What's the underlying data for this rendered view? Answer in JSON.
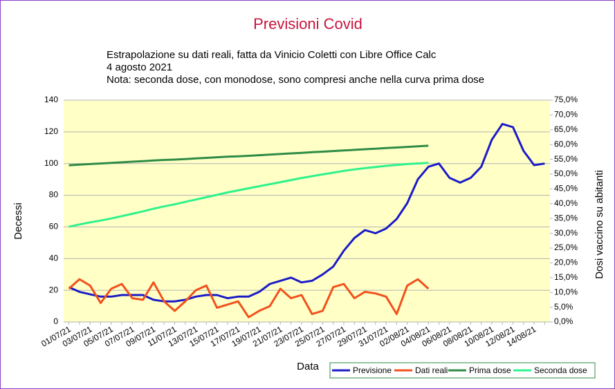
{
  "chart_data": {
    "type": "line",
    "title": "Previsioni Covid",
    "subtitle": [
      "Estrapolazione su dati reali, fatta da Vinicio Coletti con Libre Office Calc",
      "4 agosto 2021",
      "Nota: seconda dose, con monodose, sono compresi anche nella curva prima dose"
    ],
    "xlabel": "Data",
    "ylabel": "Decessi",
    "y2label": "Dosi vaccino su abitanti",
    "categories": [
      "01/07/21",
      null,
      "03/07/21",
      null,
      "05/07/21",
      null,
      "07/07/21",
      null,
      "09/07/21",
      null,
      "11/07/21",
      null,
      "13/07/21",
      null,
      "15/07/21",
      null,
      "17/07/21",
      null,
      "19/07/21",
      null,
      "21/07/21",
      null,
      "23/07/21",
      null,
      "25/07/21",
      null,
      "27/07/21",
      null,
      "29/07/21",
      null,
      "31/07/21",
      null,
      "02/08/21",
      null,
      "04/08/21",
      null,
      "06/08/21",
      null,
      "08/08/21",
      null,
      "10/08/21",
      null,
      "12/08/21",
      null,
      "14/08/21",
      null
    ],
    "series": [
      {
        "name": "Previsione",
        "color": "#1a1ac8",
        "values": [
          22,
          19,
          17.5,
          16,
          16,
          17,
          17,
          17,
          14,
          13,
          13,
          14,
          16,
          17,
          17,
          15,
          16,
          16,
          19,
          24,
          26,
          28,
          25,
          26,
          30,
          35,
          45,
          53,
          58,
          56,
          59,
          65,
          75,
          90,
          98,
          100,
          91,
          88,
          91,
          98,
          115,
          125,
          123,
          108,
          99,
          100
        ]
      },
      {
        "name": "Dati reali",
        "color": "#f2501c",
        "values": [
          21,
          27,
          23,
          12,
          21,
          24,
          15,
          14,
          25,
          13,
          7,
          13,
          20,
          23,
          9,
          11,
          13,
          3,
          7,
          10,
          21,
          15,
          17,
          5,
          7,
          22,
          24,
          15,
          19,
          18,
          16,
          5,
          23,
          27,
          21,
          null,
          null,
          null,
          null,
          null,
          null,
          null,
          null,
          null,
          null,
          null
        ]
      },
      {
        "name": "Prima dose",
        "color": "#2e8b46",
        "axis": "y2",
        "values": [
          53.0,
          53.2,
          53.4,
          53.6,
          53.8,
          54.0,
          54.2,
          54.4,
          54.6,
          54.8,
          54.9,
          55.1,
          55.3,
          55.5,
          55.7,
          55.9,
          56.0,
          56.2,
          56.4,
          56.6,
          56.8,
          57.0,
          57.2,
          57.4,
          57.6,
          57.8,
          58.0,
          58.2,
          58.4,
          58.6,
          58.8,
          59.0,
          59.2,
          59.4,
          59.6,
          null,
          null,
          null,
          null,
          null,
          null,
          null,
          null,
          null,
          null,
          null
        ]
      },
      {
        "name": "Seconda dose",
        "color": "#2ef28c",
        "axis": "y2",
        "values": [
          32.2,
          33.0,
          33.7,
          34.3,
          35.0,
          35.8,
          36.6,
          37.4,
          38.3,
          39.1,
          39.8,
          40.6,
          41.4,
          42.2,
          43.0,
          43.8,
          44.5,
          45.2,
          45.9,
          46.6,
          47.3,
          48.0,
          48.7,
          49.3,
          49.9,
          50.5,
          51.1,
          51.6,
          52.0,
          52.4,
          52.8,
          53.1,
          53.4,
          53.6,
          53.8,
          null,
          null,
          null,
          null,
          null,
          null,
          null,
          null,
          null,
          null,
          null
        ]
      }
    ],
    "ylim": [
      0,
      140
    ],
    "yticks": [
      0,
      20,
      40,
      60,
      80,
      100,
      120,
      140
    ],
    "y2lim": [
      0,
      75
    ],
    "y2ticks": [
      {
        "value": 0,
        "label": "0,0%"
      },
      {
        "value": 5,
        "label": "5,0%"
      },
      {
        "value": 10,
        "label": "10,0%"
      },
      {
        "value": 15,
        "label": "15,0%"
      },
      {
        "value": 20,
        "label": "20,0%"
      },
      {
        "value": 25,
        "label": "25,0%"
      },
      {
        "value": 30,
        "label": "30,0%"
      },
      {
        "value": 35,
        "label": "35,0%"
      },
      {
        "value": 40,
        "label": "40,0%"
      },
      {
        "value": 45,
        "label": "45,0%"
      },
      {
        "value": 50,
        "label": "50,0%"
      },
      {
        "value": 55,
        "label": "55,0%"
      },
      {
        "value": 60,
        "label": "60,0%"
      },
      {
        "value": 65,
        "label": "65,0%"
      },
      {
        "value": 70,
        "label": "70,0%"
      },
      {
        "value": 75,
        "label": "75,0%"
      }
    ],
    "grid": true,
    "legend": "bottom-right"
  }
}
